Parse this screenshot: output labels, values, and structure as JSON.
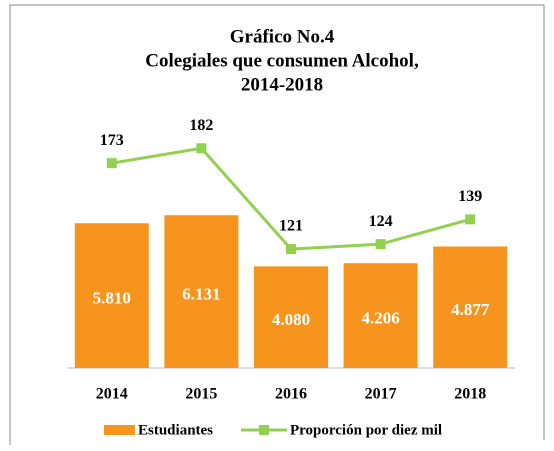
{
  "chart_data": {
    "type": "bar_line",
    "title": [
      "Gráfico No.4",
      "Colegiales que consumen Alcohol,",
      "2014-2018"
    ],
    "categories": [
      "2014",
      "2015",
      "2016",
      "2017",
      "2018"
    ],
    "series": [
      {
        "name": "Estudiantes",
        "type": "bar",
        "color": "#f7941d",
        "values": [
          5810,
          6131,
          4080,
          4206,
          4877
        ],
        "value_labels": [
          "5.810",
          "6.131",
          "4.080",
          "4.206",
          "4.877"
        ]
      },
      {
        "name": "Proporción por diez mil",
        "type": "line",
        "axis": "y2",
        "color": "#92d050",
        "values": [
          173,
          182,
          121,
          124,
          139
        ]
      }
    ],
    "ylim": [
      0,
      12000
    ],
    "y2lim": [
      49,
      230
    ],
    "legend": "bottom"
  }
}
